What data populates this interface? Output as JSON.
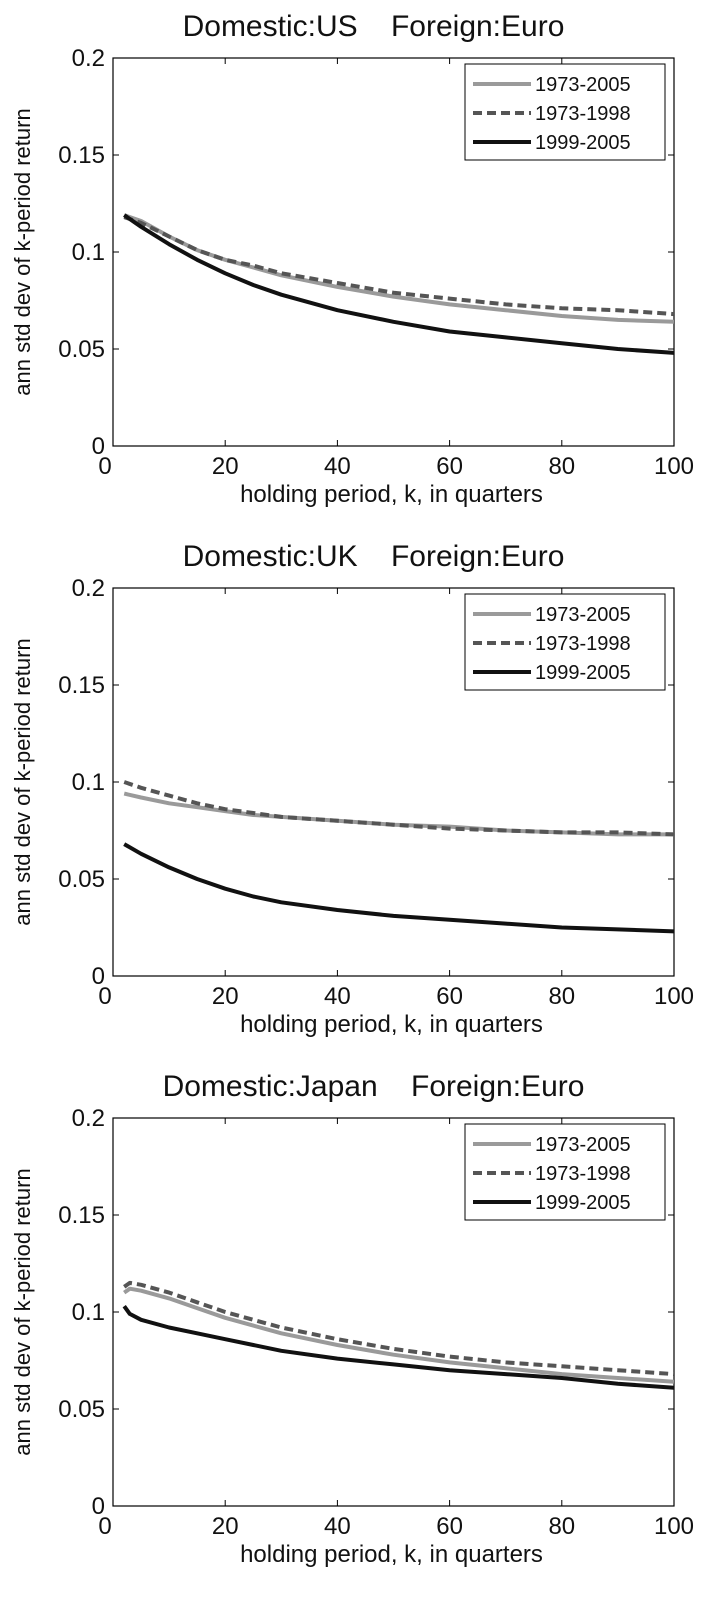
{
  "chart_data": [
    {
      "type": "line",
      "title": "Domestic:US    Foreign:Euro",
      "xlabel": "holding period, k, in quarters",
      "ylabel": "ann std dev of k-period return",
      "xlim": [
        0,
        100
      ],
      "ylim": [
        0,
        0.2
      ],
      "x_ticks": [
        "0",
        "20",
        "40",
        "60",
        "80",
        "100"
      ],
      "y_ticks": [
        "0",
        "0.05",
        "0.1",
        "0.15",
        "0.2"
      ],
      "grid": false,
      "legend": "top-right",
      "x": [
        2,
        5,
        10,
        15,
        20,
        25,
        30,
        40,
        50,
        60,
        70,
        80,
        90,
        100
      ],
      "series": [
        {
          "name": "1973-2005",
          "color": "#9a9a9a",
          "dash": "solid",
          "values": [
            0.119,
            0.116,
            0.108,
            0.101,
            0.096,
            0.092,
            0.088,
            0.082,
            0.077,
            0.073,
            0.07,
            0.067,
            0.065,
            0.064
          ]
        },
        {
          "name": "1973-1998",
          "color": "#555555",
          "dash": "dashed",
          "values": [
            0.118,
            0.115,
            0.108,
            0.101,
            0.096,
            0.093,
            0.089,
            0.084,
            0.079,
            0.076,
            0.073,
            0.071,
            0.07,
            0.068
          ]
        },
        {
          "name": "1999-2005",
          "color": "#111111",
          "dash": "solid",
          "values": [
            0.119,
            0.113,
            0.104,
            0.096,
            0.089,
            0.083,
            0.078,
            0.07,
            0.064,
            0.059,
            0.056,
            0.053,
            0.05,
            0.048
          ]
        }
      ]
    },
    {
      "type": "line",
      "title": "Domestic:UK    Foreign:Euro",
      "xlabel": "holding period, k, in quarters",
      "ylabel": "ann std dev of k-period return",
      "xlim": [
        0,
        100
      ],
      "ylim": [
        0,
        0.2
      ],
      "x_ticks": [
        "0",
        "20",
        "40",
        "60",
        "80",
        "100"
      ],
      "y_ticks": [
        "0",
        "0.05",
        "0.1",
        "0.15",
        "0.2"
      ],
      "grid": false,
      "legend": "top-right",
      "x": [
        2,
        5,
        10,
        15,
        20,
        25,
        30,
        40,
        50,
        60,
        70,
        80,
        90,
        100
      ],
      "series": [
        {
          "name": "1973-2005",
          "color": "#9a9a9a",
          "dash": "solid",
          "values": [
            0.094,
            0.092,
            0.089,
            0.087,
            0.085,
            0.083,
            0.082,
            0.08,
            0.078,
            0.077,
            0.075,
            0.074,
            0.073,
            0.073
          ]
        },
        {
          "name": "1973-1998",
          "color": "#555555",
          "dash": "dashed",
          "values": [
            0.1,
            0.097,
            0.093,
            0.089,
            0.086,
            0.084,
            0.082,
            0.08,
            0.078,
            0.076,
            0.075,
            0.074,
            0.074,
            0.073
          ]
        },
        {
          "name": "1999-2005",
          "color": "#111111",
          "dash": "solid",
          "values": [
            0.068,
            0.063,
            0.056,
            0.05,
            0.045,
            0.041,
            0.038,
            0.034,
            0.031,
            0.029,
            0.027,
            0.025,
            0.024,
            0.023
          ]
        }
      ]
    },
    {
      "type": "line",
      "title": "Domestic:Japan    Foreign:Euro",
      "xlabel": "holding period, k, in quarters",
      "ylabel": "ann std dev of k-period return",
      "xlim": [
        0,
        100
      ],
      "ylim": [
        0,
        0.2
      ],
      "x_ticks": [
        "0",
        "20",
        "40",
        "60",
        "80",
        "100"
      ],
      "y_ticks": [
        "0",
        "0.05",
        "0.1",
        "0.15",
        "0.2"
      ],
      "grid": false,
      "legend": "top-right",
      "x": [
        2,
        3,
        5,
        10,
        15,
        20,
        25,
        30,
        40,
        50,
        60,
        70,
        80,
        90,
        100
      ],
      "series": [
        {
          "name": "1973-2005",
          "color": "#9a9a9a",
          "dash": "solid",
          "values": [
            0.11,
            0.112,
            0.111,
            0.107,
            0.102,
            0.097,
            0.093,
            0.089,
            0.083,
            0.078,
            0.074,
            0.071,
            0.068,
            0.066,
            0.064
          ]
        },
        {
          "name": "1973-1998",
          "color": "#555555",
          "dash": "dashed",
          "values": [
            0.113,
            0.115,
            0.114,
            0.11,
            0.105,
            0.1,
            0.096,
            0.092,
            0.086,
            0.081,
            0.077,
            0.074,
            0.072,
            0.07,
            0.068
          ]
        },
        {
          "name": "1999-2005",
          "color": "#111111",
          "dash": "solid",
          "values": [
            0.103,
            0.099,
            0.096,
            0.092,
            0.089,
            0.086,
            0.083,
            0.08,
            0.076,
            0.073,
            0.07,
            0.068,
            0.066,
            0.063,
            0.061
          ]
        }
      ]
    }
  ]
}
